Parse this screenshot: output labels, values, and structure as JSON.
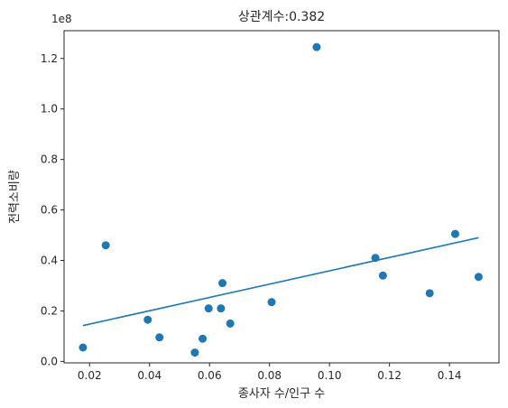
{
  "chart_data": {
    "type": "scatter",
    "title": "상관계수:0.382",
    "xlabel": "종사자 수/인구 수",
    "ylabel": "전력소비량",
    "y_offset_text": "1e8",
    "xlim": [
      0.0115,
      0.1565
    ],
    "ylim": [
      -0.0058,
      1.31
    ],
    "x_ticks": [
      0.02,
      0.04,
      0.06,
      0.08,
      0.1,
      0.12,
      0.14
    ],
    "x_tick_labels": [
      "0.02",
      "0.04",
      "0.06",
      "0.08",
      "0.10",
      "0.12",
      "0.14"
    ],
    "y_ticks": [
      0.0,
      0.2,
      0.4,
      0.6,
      0.8,
      1.0,
      1.2
    ],
    "y_tick_labels": [
      "0.0",
      "0.2",
      "0.4",
      "0.6",
      "0.8",
      "1.0",
      "1.2"
    ],
    "grid": false,
    "series": [
      {
        "type": "scatter",
        "color": "#1f77b4",
        "points": [
          {
            "x": 0.0178,
            "y": 0.055
          },
          {
            "x": 0.0254,
            "y": 0.46
          },
          {
            "x": 0.0394,
            "y": 0.165
          },
          {
            "x": 0.0433,
            "y": 0.095
          },
          {
            "x": 0.0551,
            "y": 0.035
          },
          {
            "x": 0.0577,
            "y": 0.09
          },
          {
            "x": 0.0597,
            "y": 0.21
          },
          {
            "x": 0.0638,
            "y": 0.21
          },
          {
            "x": 0.0643,
            "y": 0.31
          },
          {
            "x": 0.0669,
            "y": 0.15
          },
          {
            "x": 0.0807,
            "y": 0.235
          },
          {
            "x": 0.0957,
            "y": 1.245
          },
          {
            "x": 0.1153,
            "y": 0.41
          },
          {
            "x": 0.1178,
            "y": 0.34
          },
          {
            "x": 0.1334,
            "y": 0.27
          },
          {
            "x": 0.1419,
            "y": 0.505
          },
          {
            "x": 0.1497,
            "y": 0.335
          }
        ]
      },
      {
        "type": "line",
        "color": "#1f77b4",
        "points": [
          {
            "x": 0.0178,
            "y": 0.142
          },
          {
            "x": 0.1497,
            "y": 0.49
          }
        ]
      }
    ]
  }
}
